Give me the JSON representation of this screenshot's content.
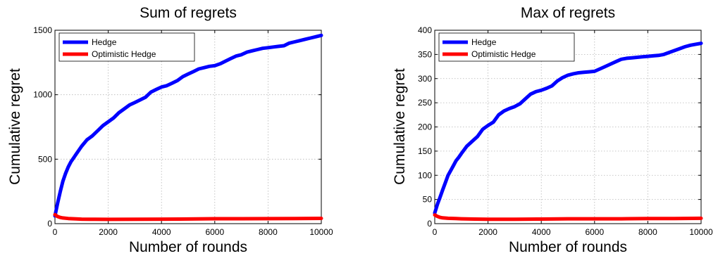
{
  "chart_data": [
    {
      "type": "line",
      "title": "Sum of regrets",
      "xlabel": "Number of rounds",
      "ylabel": "Cumulative regret",
      "xlim": [
        0,
        10000
      ],
      "ylim": [
        0,
        1500
      ],
      "xticks": [
        0,
        2000,
        4000,
        6000,
        8000,
        10000
      ],
      "yticks": [
        0,
        500,
        1000,
        1500
      ],
      "grid": true,
      "legend_placement": "top-left",
      "series": [
        {
          "name": "Hedge",
          "color": "#0000ff",
          "x": [
            0,
            100,
            200,
            300,
            400,
            500,
            600,
            700,
            800,
            900,
            1000,
            1200,
            1400,
            1600,
            1800,
            2000,
            2200,
            2400,
            2600,
            2800,
            3000,
            3200,
            3400,
            3600,
            3800,
            4000,
            4200,
            4400,
            4600,
            4800,
            5000,
            5200,
            5400,
            5600,
            5800,
            6000,
            6200,
            6400,
            6600,
            6800,
            7000,
            7200,
            7400,
            7600,
            7800,
            8000,
            8200,
            8400,
            8600,
            8800,
            9000,
            9200,
            9400,
            9600,
            9800,
            10000
          ],
          "y": [
            60,
            160,
            250,
            330,
            390,
            440,
            480,
            510,
            540,
            570,
            600,
            650,
            680,
            720,
            760,
            790,
            820,
            860,
            890,
            920,
            940,
            960,
            980,
            1020,
            1040,
            1060,
            1070,
            1090,
            1110,
            1140,
            1160,
            1180,
            1200,
            1210,
            1220,
            1225,
            1240,
            1260,
            1280,
            1300,
            1310,
            1330,
            1340,
            1350,
            1360,
            1365,
            1370,
            1375,
            1380,
            1400,
            1410,
            1420,
            1430,
            1440,
            1450,
            1460
          ]
        },
        {
          "name": "Optimistic Hedge",
          "color": "#ff0000",
          "x": [
            0,
            100,
            200,
            300,
            500,
            800,
            1000,
            1500,
            2000,
            3000,
            4000,
            5000,
            6000,
            7000,
            8000,
            9000,
            10000
          ],
          "y": [
            70,
            55,
            48,
            44,
            40,
            37,
            35,
            34,
            33,
            34,
            35,
            36,
            38,
            38,
            39,
            40,
            41
          ]
        }
      ]
    },
    {
      "type": "line",
      "title": "Max of regrets",
      "xlabel": "Number of rounds",
      "ylabel": "Cumulative regret",
      "xlim": [
        0,
        10000
      ],
      "ylim": [
        0,
        400
      ],
      "xticks": [
        0,
        2000,
        4000,
        6000,
        8000,
        10000
      ],
      "yticks": [
        0,
        50,
        100,
        150,
        200,
        250,
        300,
        350,
        400
      ],
      "grid": true,
      "legend_placement": "top-left",
      "series": [
        {
          "name": "Hedge",
          "color": "#0000ff",
          "x": [
            0,
            100,
            200,
            300,
            400,
            500,
            600,
            700,
            800,
            900,
            1000,
            1200,
            1400,
            1600,
            1800,
            2000,
            2200,
            2400,
            2600,
            2800,
            3000,
            3200,
            3400,
            3600,
            3800,
            4000,
            4200,
            4400,
            4600,
            4800,
            5000,
            5200,
            5400,
            5600,
            5800,
            6000,
            6200,
            6400,
            6600,
            6800,
            7000,
            7200,
            7400,
            7600,
            7800,
            8000,
            8200,
            8400,
            8600,
            8800,
            9000,
            9200,
            9400,
            9600,
            9800,
            10000
          ],
          "y": [
            22,
            40,
            55,
            70,
            85,
            100,
            110,
            120,
            130,
            137,
            145,
            160,
            170,
            180,
            195,
            203,
            210,
            225,
            233,
            238,
            242,
            248,
            258,
            268,
            273,
            276,
            280,
            285,
            295,
            302,
            307,
            310,
            312,
            313,
            314,
            315,
            320,
            325,
            330,
            335,
            340,
            342,
            343,
            344,
            345,
            346,
            347,
            348,
            350,
            354,
            358,
            362,
            366,
            369,
            371,
            373
          ]
        },
        {
          "name": "Optimistic Hedge",
          "color": "#ff0000",
          "x": [
            0,
            100,
            200,
            300,
            500,
            800,
            1000,
            1500,
            2000,
            3000,
            4000,
            5000,
            6000,
            7000,
            8000,
            9000,
            10000
          ],
          "y": [
            18,
            15,
            13,
            12,
            11,
            10.5,
            10,
            9.5,
            9,
            9,
            9.5,
            10,
            10,
            10,
            10.5,
            10.5,
            11
          ]
        }
      ]
    }
  ]
}
